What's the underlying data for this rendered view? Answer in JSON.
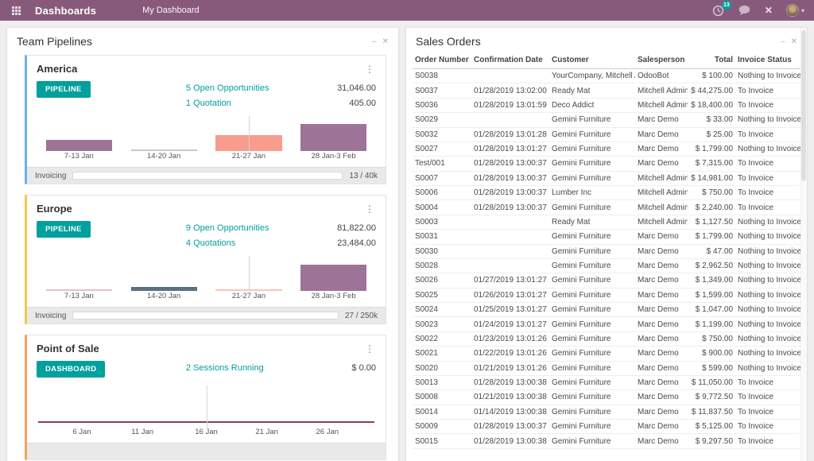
{
  "navbar": {
    "title": "Dashboards",
    "menu_item": "My Dashboard",
    "activity_badge": "13",
    "caret": "▾",
    "close_glyph": "✕"
  },
  "team_pipelines": {
    "title": "Team Pipelines",
    "minimize_label": "–",
    "close_label": "✕",
    "kebab_glyph": "⋮",
    "cards": [
      {
        "title": "America",
        "accent_color": "#6EB1E4",
        "button_label": "PIPELINE",
        "stats": [
          {
            "label": "5 Open Opportunities",
            "value": "31,046.00"
          },
          {
            "label": "1 Quotation",
            "value": "405.00"
          }
        ],
        "chart": {
          "type": "bar",
          "categories": [
            "7-13 Jan",
            "14-20 Jan",
            "21-27 Jan",
            "28 Jan-3 Feb"
          ],
          "bars": [
            {
              "height_pct": 32,
              "color": "#9D7398"
            },
            {
              "height_pct": 5,
              "color": "#c6cbd2"
            },
            {
              "height_pct": 45,
              "color": "#F89C8D"
            },
            {
              "height_pct": 78,
              "color": "#9D7398"
            }
          ],
          "marker_index": 2
        },
        "footer": {
          "label": "Invoicing",
          "value": "13 / 40k",
          "has_progress": true
        }
      },
      {
        "title": "Europe",
        "accent_color": "#F5C64B",
        "button_label": "PIPELINE",
        "stats": [
          {
            "label": "9 Open Opportunities",
            "value": "81,822.00"
          },
          {
            "label": "4 Quotations",
            "value": "23,484.00"
          }
        ],
        "chart": {
          "type": "bar",
          "categories": [
            "7-13 Jan",
            "14-20 Jan",
            "21-27 Jan",
            "28 Jan-3 Feb"
          ],
          "bars": [
            {
              "height_pct": 5,
              "color": "#E5C0CE"
            },
            {
              "height_pct": 12,
              "color": "#5B7180"
            },
            {
              "height_pct": 5,
              "color": "#F6C7BC"
            },
            {
              "height_pct": 75,
              "color": "#9D7398"
            }
          ],
          "marker_index": 2
        },
        "footer": {
          "label": "Invoicing",
          "value": "27 / 250k",
          "has_progress": true
        }
      },
      {
        "title": "Point of Sale",
        "accent_color": "#F0A35E",
        "button_label": "DASHBOARD",
        "stats": [
          {
            "label": "2 Sessions Running",
            "value": "$ 0.00"
          }
        ],
        "chart": {
          "type": "line",
          "categories": [
            "6 Jan",
            "11 Jan",
            "16 Jan",
            "21 Jan",
            "26 Jan"
          ],
          "label_positions_pct": [
            13,
            31,
            50,
            68,
            86
          ],
          "line_color": "#84424E",
          "flat_line": true,
          "marker_pct": 50
        },
        "footer": {
          "label": "",
          "value": "",
          "has_progress": false
        }
      }
    ]
  },
  "sales_orders": {
    "title": "Sales Orders",
    "minimize_label": "–",
    "close_label": "✕",
    "columns": [
      "Order Number",
      "Confirmation Date",
      "Customer",
      "Salesperson",
      "Total",
      "Invoice Status"
    ],
    "column_keys": [
      "order-number",
      "confirmation-date",
      "customer",
      "salesperson",
      "total",
      "invoice-status"
    ],
    "rows": [
      [
        "S0038",
        "",
        "YourCompany, Mitchell Admin",
        "OdooBot",
        "$ 100.00",
        "Nothing to Invoice"
      ],
      [
        "S0037",
        "01/28/2019 13:02:00",
        "Ready Mat",
        "Mitchell Admin",
        "$ 44,275.00",
        "To Invoice"
      ],
      [
        "S0036",
        "01/28/2019 13:01:59",
        "Deco Addict",
        "Mitchell Admin",
        "$ 18,400.00",
        "To Invoice"
      ],
      [
        "S0029",
        "",
        "Gemini Furniture",
        "Marc Demo",
        "$ 33.00",
        "Nothing to Invoice"
      ],
      [
        "S0032",
        "01/28/2019 13:01:28",
        "Gemini Furniture",
        "Marc Demo",
        "$ 25.00",
        "To Invoice"
      ],
      [
        "S0027",
        "01/28/2019 13:01:27",
        "Gemini Furniture",
        "Marc Demo",
        "$ 1,799.00",
        "Nothing to Invoice"
      ],
      [
        "Test/001",
        "01/28/2019 13:00:37",
        "Gemini Furniture",
        "Marc Demo",
        "$ 7,315.00",
        "To Invoice"
      ],
      [
        "S0007",
        "01/28/2019 13:00:37",
        "Gemini Furniture",
        "Mitchell Admin",
        "$ 14,981.00",
        "To Invoice"
      ],
      [
        "S0006",
        "01/28/2019 13:00:37",
        "Lumber Inc",
        "Mitchell Admin",
        "$ 750.00",
        "To Invoice"
      ],
      [
        "S0004",
        "01/28/2019 13:00:37",
        "Gemini Furniture",
        "Mitchell Admin",
        "$ 2,240.00",
        "To Invoice"
      ],
      [
        "S0003",
        "",
        "Ready Mat",
        "Mitchell Admin",
        "$ 1,127.50",
        "Nothing to Invoice"
      ],
      [
        "S0031",
        "",
        "Gemini Furniture",
        "Marc Demo",
        "$ 1,799.00",
        "Nothing to Invoice"
      ],
      [
        "S0030",
        "",
        "Gemini Furniture",
        "Marc Demo",
        "$ 47.00",
        "Nothing to Invoice"
      ],
      [
        "S0028",
        "",
        "Gemini Furniture",
        "Marc Demo",
        "$ 2,962.50",
        "Nothing to Invoice"
      ],
      [
        "S0026",
        "01/27/2019 13:01:27",
        "Gemini Furniture",
        "Marc Demo",
        "$ 1,349.00",
        "Nothing to Invoice"
      ],
      [
        "S0025",
        "01/26/2019 13:01:27",
        "Gemini Furniture",
        "Marc Demo",
        "$ 1,599.00",
        "Nothing to Invoice"
      ],
      [
        "S0024",
        "01/25/2019 13:01:27",
        "Gemini Furniture",
        "Marc Demo",
        "$ 1,047.00",
        "Nothing to Invoice"
      ],
      [
        "S0023",
        "01/24/2019 13:01:27",
        "Gemini Furniture",
        "Marc Demo",
        "$ 1,199.00",
        "Nothing to Invoice"
      ],
      [
        "S0022",
        "01/23/2019 13:01:26",
        "Gemini Furniture",
        "Marc Demo",
        "$ 750.00",
        "Nothing to Invoice"
      ],
      [
        "S0021",
        "01/22/2019 13:01:26",
        "Gemini Furniture",
        "Marc Demo",
        "$ 900.00",
        "Nothing to Invoice"
      ],
      [
        "S0020",
        "01/21/2019 13:01:26",
        "Gemini Furniture",
        "Marc Demo",
        "$ 599.00",
        "Nothing to Invoice"
      ],
      [
        "S0013",
        "01/28/2019 13:00:38",
        "Gemini Furniture",
        "Marc Demo",
        "$ 11,050.00",
        "To Invoice"
      ],
      [
        "S0008",
        "01/21/2019 13:00:38",
        "Gemini Furniture",
        "Marc Demo",
        "$ 9,772.50",
        "To Invoice"
      ],
      [
        "S0014",
        "01/14/2019 13:00:38",
        "Gemini Furniture",
        "Marc Demo",
        "$ 11,837.50",
        "To Invoice"
      ],
      [
        "S0009",
        "01/28/2019 13:00:37",
        "Gemini Furniture",
        "Marc Demo",
        "$ 5,125.00",
        "To Invoice"
      ],
      [
        "S0015",
        "01/28/2019 13:00:38",
        "Gemini Furniture",
        "Marc Demo",
        "$ 9,297.50",
        "To Invoice"
      ]
    ]
  }
}
